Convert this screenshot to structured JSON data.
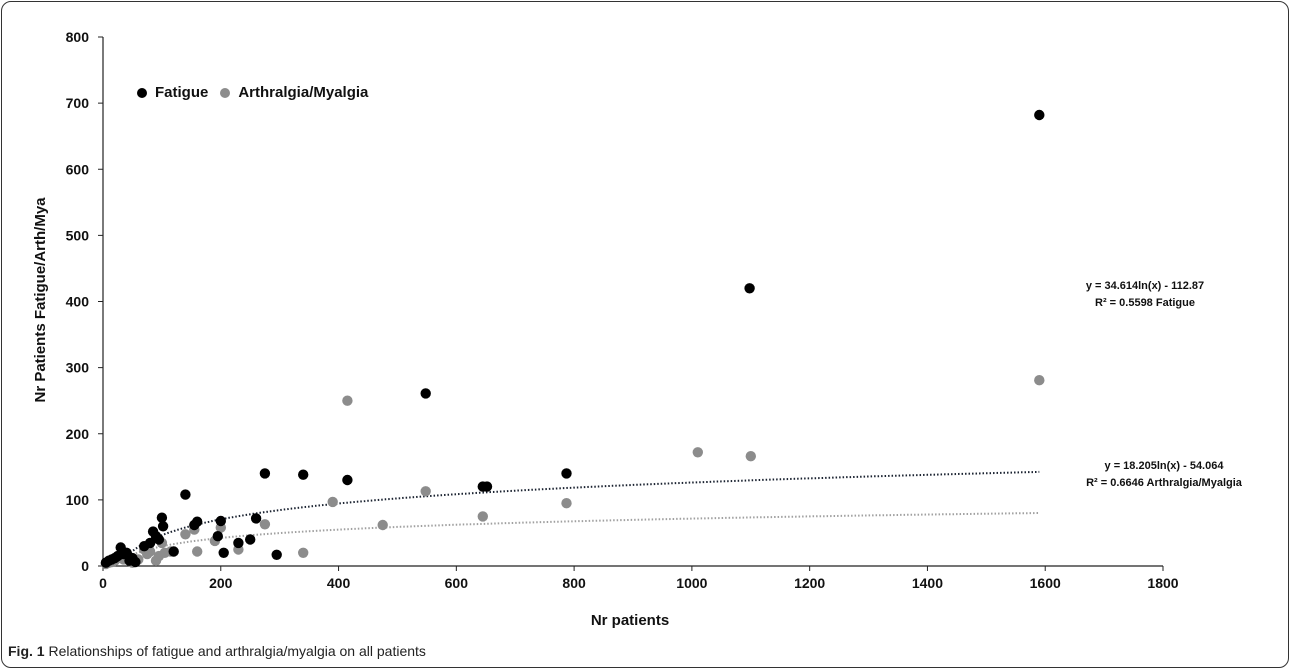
{
  "chart_data": {
    "type": "scatter",
    "xlabel": "Nr patients",
    "ylabel": "Nr Patients Fatigue/Arth/Mya",
    "xlim": [
      0,
      1800
    ],
    "ylim": [
      0,
      800
    ],
    "x_ticks": [
      "0",
      "200",
      "400",
      "600",
      "800",
      "1000",
      "1200",
      "1400",
      "1600",
      "1800"
    ],
    "y_ticks": [
      "0",
      "100",
      "200",
      "300",
      "400",
      "500",
      "600",
      "700",
      "800"
    ],
    "grid": false,
    "legend_position": "top-left",
    "series": [
      {
        "name": "Fatigue",
        "color": "#000000",
        "points": [
          [
            5,
            5
          ],
          [
            10,
            8
          ],
          [
            15,
            10
          ],
          [
            20,
            12
          ],
          [
            25,
            15
          ],
          [
            30,
            28
          ],
          [
            35,
            18
          ],
          [
            40,
            20
          ],
          [
            45,
            8
          ],
          [
            50,
            12
          ],
          [
            55,
            6
          ],
          [
            70,
            30
          ],
          [
            80,
            35
          ],
          [
            85,
            52
          ],
          [
            90,
            45
          ],
          [
            95,
            40
          ],
          [
            100,
            73
          ],
          [
            102,
            60
          ],
          [
            120,
            22
          ],
          [
            140,
            108
          ],
          [
            155,
            62
          ],
          [
            160,
            67
          ],
          [
            195,
            45
          ],
          [
            200,
            68
          ],
          [
            205,
            20
          ],
          [
            230,
            35
          ],
          [
            250,
            40
          ],
          [
            260,
            72
          ],
          [
            275,
            140
          ],
          [
            295,
            17
          ],
          [
            340,
            138
          ],
          [
            415,
            130
          ],
          [
            548,
            261
          ],
          [
            645,
            120
          ],
          [
            652,
            120
          ],
          [
            787,
            140
          ],
          [
            1098,
            420
          ],
          [
            1590,
            682
          ]
        ]
      },
      {
        "name": "Arthralgia/Myalgia",
        "color": "#8c8c8c",
        "points": [
          [
            5,
            3
          ],
          [
            10,
            5
          ],
          [
            15,
            6
          ],
          [
            20,
            8
          ],
          [
            25,
            12
          ],
          [
            30,
            18
          ],
          [
            35,
            10
          ],
          [
            40,
            12
          ],
          [
            50,
            5
          ],
          [
            60,
            10
          ],
          [
            70,
            25
          ],
          [
            75,
            18
          ],
          [
            80,
            22
          ],
          [
            90,
            8
          ],
          [
            95,
            15
          ],
          [
            100,
            35
          ],
          [
            105,
            20
          ],
          [
            115,
            22
          ],
          [
            140,
            48
          ],
          [
            155,
            55
          ],
          [
            160,
            22
          ],
          [
            190,
            38
          ],
          [
            200,
            58
          ],
          [
            230,
            25
          ],
          [
            275,
            63
          ],
          [
            340,
            20
          ],
          [
            390,
            97
          ],
          [
            415,
            250
          ],
          [
            475,
            62
          ],
          [
            548,
            113
          ],
          [
            645,
            75
          ],
          [
            787,
            95
          ],
          [
            1010,
            172
          ],
          [
            1100,
            166
          ],
          [
            1590,
            281
          ]
        ]
      }
    ],
    "trendlines": [
      {
        "series": "Fatigue",
        "type": "log",
        "a": 34.614,
        "b": -112.87,
        "x_range": [
          10,
          1590
        ],
        "color": "#1a2230",
        "equation": "y = 34.614ln(x) - 112.87",
        "r2_label": "R² = 0.5598 Fatigue"
      },
      {
        "series": "Arthralgia/Myalgia",
        "type": "log",
        "a": 18.205,
        "b": -54.064,
        "x_range": [
          10,
          1590
        ],
        "color": "#a0a0a0",
        "equation": "y = 18.205ln(x) - 54.064",
        "r2_label": "R² = 0.6646 Arthralgia/Myalgia"
      }
    ]
  },
  "caption": {
    "label": "Fig. 1",
    "text": " Relationships of fatigue and arthralgia/myalgia on all patients"
  }
}
